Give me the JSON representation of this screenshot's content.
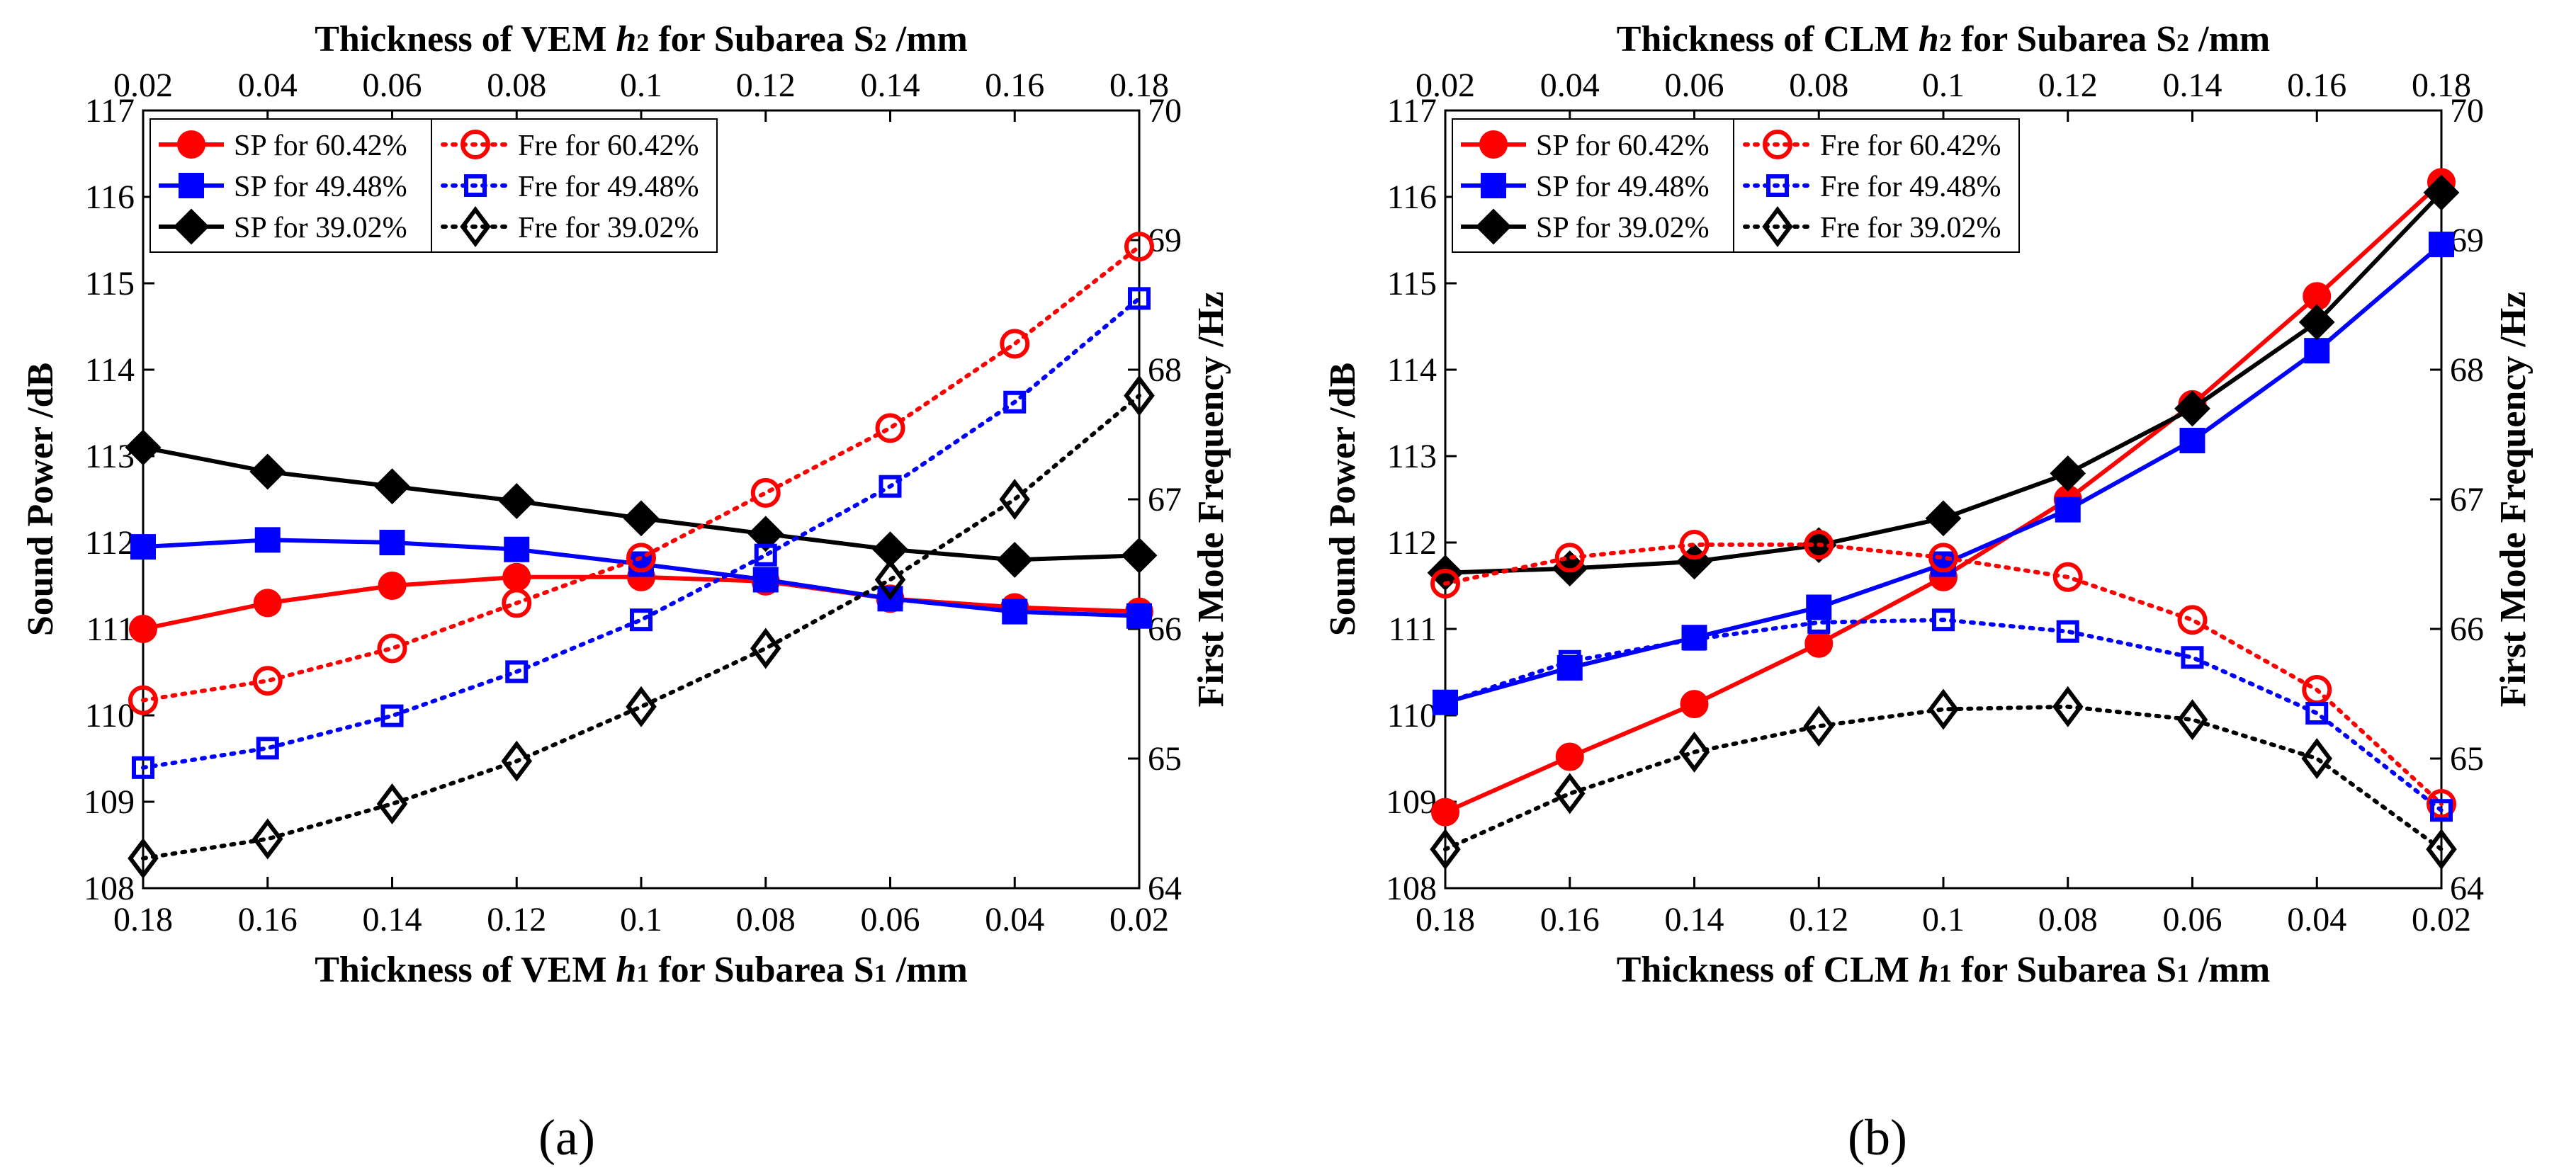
{
  "chart_data": [
    {
      "panel_label": "(a)",
      "type": "line",
      "top_xlabel": "Thickness  of VEM  h2 for Subarea S2 /mm",
      "top_xlabel_parts": {
        "pre": "Thickness  of VEM  ",
        "h": "h",
        "hsub": "2",
        "mid": " for Subarea S",
        "ssub": "2",
        "post": " /mm"
      },
      "bottom_xlabel": "Thickness of VEM  h1 for Subarea S1 /mm",
      "bottom_xlabel_parts": {
        "pre": "Thickness of VEM  ",
        "h": "h",
        "hsub": "1",
        "mid": " for Subarea S",
        "ssub": "1",
        "post": " /mm"
      },
      "ylabel": "Sound Power /dB",
      "y2label": "First Mode Frequency /Hz",
      "top_ticks": [
        "0.02",
        "0.04",
        "0.06",
        "0.08",
        "0.1",
        "0.12",
        "0.14",
        "0.16",
        "0.18"
      ],
      "bottom_ticks": [
        "0.18",
        "0.16",
        "0.14",
        "0.12",
        "0.1",
        "0.08",
        "0.06",
        "0.04",
        "0.02"
      ],
      "ylim": [
        108,
        117
      ],
      "y_ticks": [
        "108",
        "109",
        "110",
        "111",
        "112",
        "113",
        "114",
        "115",
        "116",
        "117"
      ],
      "y2lim": [
        64,
        70
      ],
      "y2_ticks": [
        "64",
        "65",
        "66",
        "67",
        "68",
        "69",
        "70"
      ],
      "series": [
        {
          "name": "SP for 60.42%",
          "axis": "left",
          "color": "#ff0000",
          "marker": "circle-filled",
          "dash": "solid",
          "values": [
            111.0,
            111.3,
            111.5,
            111.6,
            111.6,
            111.55,
            111.35,
            111.25,
            111.2
          ]
        },
        {
          "name": "SP for 49.48%",
          "axis": "left",
          "color": "#0000ff",
          "marker": "square-filled",
          "dash": "solid",
          "values": [
            111.95,
            112.03,
            112.0,
            111.92,
            111.75,
            111.57,
            111.35,
            111.2,
            111.15
          ]
        },
        {
          "name": "SP for 39.02%",
          "axis": "left",
          "color": "#000000",
          "marker": "diamond-filled",
          "dash": "solid",
          "values": [
            113.1,
            112.82,
            112.65,
            112.48,
            112.28,
            112.1,
            111.92,
            111.8,
            111.85
          ]
        },
        {
          "name": "Fre for 60.42%",
          "axis": "right",
          "color": "#ff0000",
          "marker": "circle-open",
          "dash": "dotted",
          "values": [
            65.45,
            65.6,
            65.85,
            66.2,
            66.55,
            67.05,
            67.55,
            68.2,
            68.95
          ]
        },
        {
          "name": "Fre for 49.48%",
          "axis": "right",
          "color": "#0000ff",
          "marker": "square-open",
          "dash": "dotted",
          "values": [
            64.93,
            65.08,
            65.33,
            65.67,
            66.07,
            66.57,
            67.1,
            67.75,
            68.55
          ]
        },
        {
          "name": "Fre for 39.02%",
          "axis": "right",
          "color": "#000000",
          "marker": "diamond-open",
          "dash": "dotted",
          "values": [
            64.23,
            64.38,
            64.65,
            64.98,
            65.4,
            65.85,
            66.38,
            67.0,
            67.8
          ]
        }
      ]
    },
    {
      "panel_label": "(b)",
      "type": "line",
      "top_xlabel": "Thickness of CLM  h2 for Subarea S2 /mm",
      "top_xlabel_parts": {
        "pre": "Thickness of CLM  ",
        "h": "h",
        "hsub": "2",
        "mid": " for Subarea S",
        "ssub": "2",
        "post": " /mm"
      },
      "bottom_xlabel": "Thickness of CLM  h1 for Subarea S1 /mm",
      "bottom_xlabel_parts": {
        "pre": "Thickness of CLM  ",
        "h": "h",
        "hsub": "1",
        "mid": " for Subarea S",
        "ssub": "1",
        "post": " /mm"
      },
      "ylabel": "Sound Power /dB",
      "y2label": "First Mode Frequency /Hz",
      "top_ticks": [
        "0.02",
        "0.04",
        "0.06",
        "0.08",
        "0.1",
        "0.12",
        "0.14",
        "0.16",
        "0.18"
      ],
      "bottom_ticks": [
        "0.18",
        "0.16",
        "0.14",
        "0.12",
        "0.1",
        "0.08",
        "0.06",
        "0.04",
        "0.02"
      ],
      "ylim": [
        108,
        117
      ],
      "y_ticks": [
        "108",
        "109",
        "110",
        "111",
        "112",
        "113",
        "114",
        "115",
        "116",
        "117"
      ],
      "y2lim": [
        64,
        70
      ],
      "y2_ticks": [
        "64",
        "65",
        "66",
        "67",
        "68",
        "69",
        "70"
      ],
      "series": [
        {
          "name": "SP for 60.42%",
          "axis": "left",
          "color": "#ff0000",
          "marker": "circle-filled",
          "dash": "solid",
          "values": [
            108.88,
            109.52,
            110.13,
            110.83,
            111.6,
            112.5,
            113.6,
            114.85,
            116.17
          ]
        },
        {
          "name": "SP for 49.48%",
          "axis": "left",
          "color": "#0000ff",
          "marker": "square-filled",
          "dash": "solid",
          "values": [
            110.15,
            110.55,
            110.9,
            111.25,
            111.75,
            112.38,
            113.18,
            114.22,
            115.45
          ]
        },
        {
          "name": "SP for 39.02%",
          "axis": "left",
          "color": "#000000",
          "marker": "diamond-filled",
          "dash": "solid",
          "values": [
            111.65,
            111.7,
            111.78,
            111.97,
            112.28,
            112.8,
            113.55,
            114.55,
            116.05
          ]
        },
        {
          "name": "Fre for 60.42%",
          "axis": "right",
          "color": "#ff0000",
          "marker": "circle-open",
          "dash": "dotted",
          "values": [
            66.35,
            66.55,
            66.65,
            66.65,
            66.55,
            66.4,
            66.07,
            65.53,
            64.65
          ]
        },
        {
          "name": "Fre for 49.48%",
          "axis": "right",
          "color": "#0000ff",
          "marker": "square-open",
          "dash": "dotted",
          "values": [
            65.43,
            65.75,
            65.92,
            66.05,
            66.07,
            65.98,
            65.78,
            65.35,
            64.6
          ]
        },
        {
          "name": "Fre for 39.02%",
          "axis": "right",
          "color": "#000000",
          "marker": "diamond-open",
          "dash": "dotted",
          "values": [
            64.3,
            64.73,
            65.05,
            65.25,
            65.38,
            65.4,
            65.3,
            65.0,
            64.3
          ]
        }
      ]
    }
  ]
}
